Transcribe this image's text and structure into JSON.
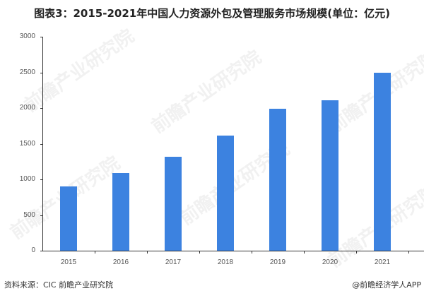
{
  "title": "图表3：2015-2021年中国人力资源外包及管理服务市场规模(单位：亿元)",
  "footer": {
    "source": "资料来源：CIC 前瞻产业研究院",
    "credit": "@前瞻经济学人APP"
  },
  "watermark": "前瞻产业研究院",
  "colors": {
    "bar": "#3c82e0",
    "axis": "#333333"
  },
  "chart_data": {
    "type": "bar",
    "title": "图表3：2015-2021年中国人力资源外包及管理服务市场规模(单位：亿元)",
    "xlabel": "",
    "ylabel": "亿元",
    "categories": [
      "2015",
      "2016",
      "2017",
      "2018",
      "2019",
      "2020",
      "2021"
    ],
    "values": [
      900,
      1085,
      1320,
      1617,
      1990,
      2109,
      2500
    ],
    "ylim": [
      0,
      3000
    ],
    "yticks": [
      "0",
      "500",
      "1000",
      "1500",
      "2000",
      "2500",
      "3000"
    ],
    "grid": false,
    "legend": null
  }
}
